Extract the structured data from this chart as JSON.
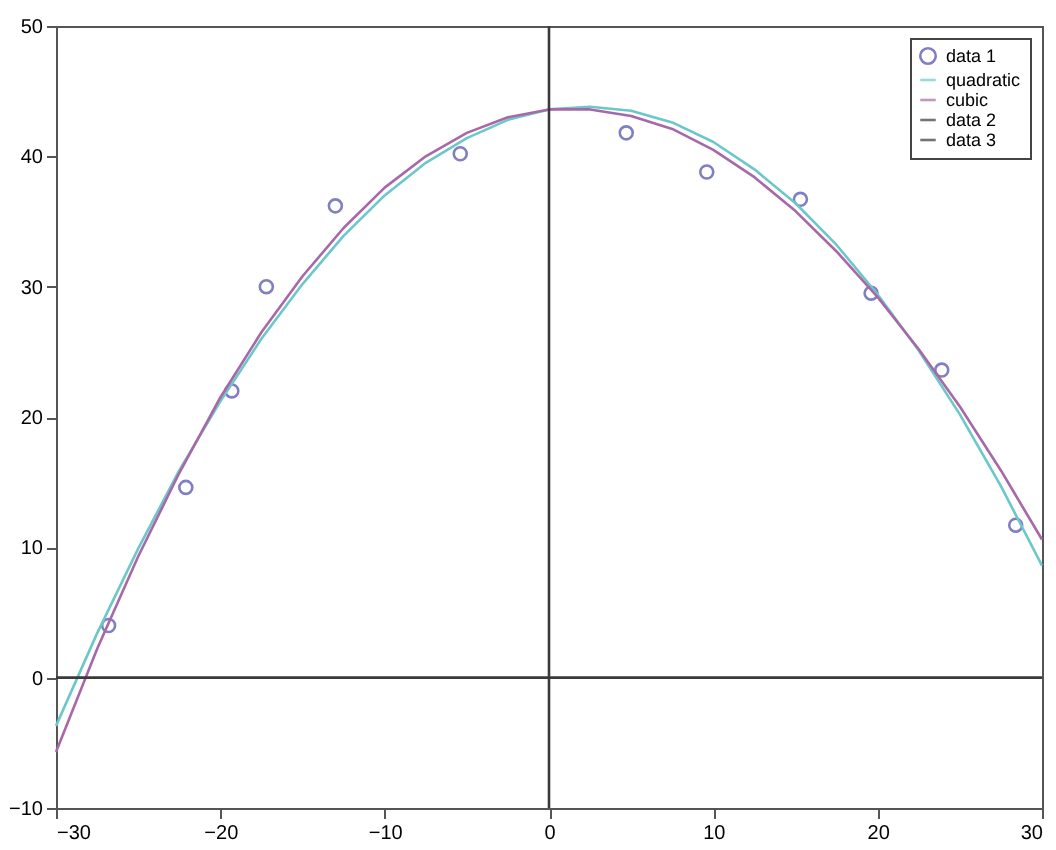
{
  "chart_data": {
    "type": "line",
    "xlim": [
      -30,
      30
    ],
    "ylim": [
      -10,
      50
    ],
    "xticks": [
      -30,
      -20,
      -10,
      0,
      10,
      20,
      30
    ],
    "yticks": [
      -10,
      0,
      10,
      20,
      30,
      40,
      50
    ],
    "legend": "top right",
    "series": [
      {
        "name": "data 1",
        "type": "scatter",
        "marker": "circle",
        "color": "#4a4aa8",
        "x": [
          -26.8,
          -22.1,
          -19.3,
          -17.2,
          -13.0,
          -5.4,
          4.7,
          9.6,
          15.3,
          19.6,
          23.9,
          28.4
        ],
        "values": [
          4.0,
          14.6,
          22.0,
          30.0,
          36.2,
          40.2,
          41.8,
          38.8,
          36.7,
          29.5,
          23.6,
          11.7
        ]
      },
      {
        "name": "quadratic",
        "color": "#6cc8c8",
        "x": [
          -30,
          -27.5,
          -25,
          -22.5,
          -20,
          -17.5,
          -15,
          -12.5,
          -10,
          -7.5,
          -5,
          -2.5,
          0,
          2.5,
          5,
          7.5,
          10,
          12.5,
          15,
          17.5,
          20,
          22.5,
          25,
          27.5,
          30
        ],
        "values": [
          -3.7,
          3.4,
          9.9,
          15.9,
          21.2,
          26.0,
          30.2,
          33.9,
          37.0,
          39.5,
          41.4,
          42.8,
          43.6,
          43.8,
          43.5,
          42.6,
          41.1,
          39.0,
          36.4,
          33.2,
          29.4,
          25.1,
          20.2,
          14.7,
          8.6
        ]
      },
      {
        "name": "cubic",
        "color": "#a868a8",
        "x": [
          -30,
          -27.5,
          -25,
          -22.5,
          -20,
          -17.5,
          -15,
          -12.5,
          -10,
          -7.5,
          -5,
          -2.5,
          0,
          2.5,
          5,
          7.5,
          10,
          12.5,
          15,
          17.5,
          20,
          22.5,
          25,
          27.5,
          30
        ],
        "values": [
          -5.7,
          2.2,
          9.3,
          15.7,
          21.5,
          26.5,
          30.8,
          34.5,
          37.6,
          40.0,
          41.8,
          43.0,
          43.6,
          43.6,
          43.1,
          42.1,
          40.5,
          38.4,
          35.8,
          32.7,
          29.2,
          25.2,
          20.8,
          15.9,
          10.6
        ]
      },
      {
        "name": "data 2",
        "color": "#3a3a3a",
        "x": [
          -30,
          30
        ],
        "values": [
          0,
          0
        ]
      },
      {
        "name": "data 3",
        "color": "#3a3a3a",
        "x": [
          0,
          0
        ],
        "values": [
          -10,
          50
        ]
      }
    ]
  }
}
